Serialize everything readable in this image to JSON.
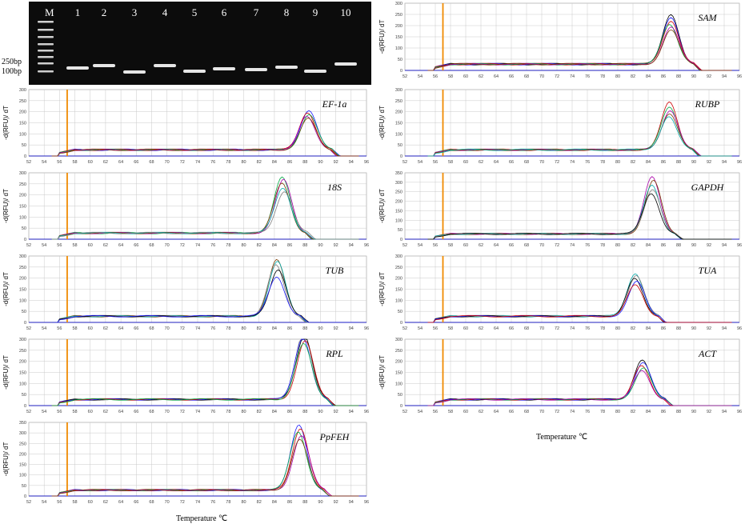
{
  "gel": {
    "marker_label": "M",
    "lane_labels": [
      "1",
      "2",
      "3",
      "4",
      "5",
      "6",
      "7",
      "8",
      "9",
      "10"
    ],
    "size_labels": [
      "250bp",
      "100bp"
    ]
  },
  "colors": {
    "axis_line": "#1f1fbf",
    "threshold": "#f08a00",
    "grid": "#c9c9c9",
    "series": [
      "#000000",
      "#1a1aff",
      "#cc0000",
      "#00aa44",
      "#aa00aa",
      "#7a3a00",
      "#00aaaa",
      "#808080"
    ]
  },
  "x_axis_label": "Temperature ℃",
  "chart_data": [
    {
      "id": "SAM",
      "type": "line",
      "title": "SAM",
      "ylabel": "-d(RFU)/ dT",
      "xlim": [
        52,
        96
      ],
      "ylim": [
        0,
        300
      ],
      "x_ticks": [
        52,
        54,
        56,
        58,
        60,
        62,
        64,
        66,
        68,
        70,
        72,
        74,
        76,
        78,
        80,
        82,
        84,
        86,
        88,
        90,
        92,
        94,
        96
      ],
      "y_ticks": [
        0,
        50,
        100,
        150,
        200,
        250,
        300
      ],
      "threshold_x": 57,
      "peaks": [
        {
          "x": 87,
          "y": 220
        },
        {
          "x": 87,
          "y": 210
        },
        {
          "x": 87,
          "y": 195
        },
        {
          "x": 86.8,
          "y": 180
        },
        {
          "x": 87,
          "y": 165
        },
        {
          "x": 87,
          "y": 150
        }
      ]
    },
    {
      "id": "EF",
      "type": "line",
      "title": "EF-1a",
      "ylabel": "-d(RFU)/ dT",
      "xlim": [
        52,
        96
      ],
      "ylim": [
        0,
        300
      ],
      "x_ticks": [
        52,
        54,
        56,
        58,
        60,
        62,
        64,
        66,
        68,
        70,
        72,
        74,
        76,
        78,
        80,
        82,
        84,
        86,
        88,
        90,
        92,
        94,
        96
      ],
      "y_ticks": [
        0,
        50,
        100,
        150,
        200,
        250,
        300
      ],
      "threshold_x": 57,
      "peaks": [
        {
          "x": 88.5,
          "y": 180
        },
        {
          "x": 88.3,
          "y": 170
        },
        {
          "x": 88.5,
          "y": 160
        },
        {
          "x": 88.2,
          "y": 150
        },
        {
          "x": 88.4,
          "y": 140
        }
      ]
    },
    {
      "id": "RUBP",
      "type": "line",
      "title": "RUBP",
      "ylabel": "-d(RFU)/ dT",
      "xlim": [
        52,
        96
      ],
      "ylim": [
        0,
        300
      ],
      "x_ticks": [
        52,
        54,
        56,
        58,
        60,
        62,
        64,
        66,
        68,
        70,
        72,
        74,
        76,
        78,
        80,
        82,
        84,
        86,
        88,
        90,
        92,
        94,
        96
      ],
      "y_ticks": [
        0,
        50,
        100,
        150,
        200,
        250,
        300
      ],
      "threshold_x": 57,
      "peaks": [
        {
          "x": 86.8,
          "y": 215
        },
        {
          "x": 86.8,
          "y": 195
        },
        {
          "x": 86.9,
          "y": 180
        },
        {
          "x": 86.8,
          "y": 165
        },
        {
          "x": 86.7,
          "y": 150
        }
      ]
    },
    {
      "id": "18S",
      "type": "line",
      "title": "18S",
      "ylabel": "-d(RFU)/ dT",
      "xlim": [
        52,
        96
      ],
      "ylim": [
        0,
        300
      ],
      "x_ticks": [
        52,
        54,
        56,
        58,
        60,
        62,
        64,
        66,
        68,
        70,
        72,
        74,
        76,
        78,
        80,
        82,
        84,
        86,
        88,
        90,
        92,
        94,
        96
      ],
      "y_ticks": [
        0,
        50,
        100,
        150,
        200,
        250,
        300
      ],
      "threshold_x": 57,
      "peaks": [
        {
          "x": 85,
          "y": 250
        },
        {
          "x": 85.2,
          "y": 240
        },
        {
          "x": 85,
          "y": 225
        },
        {
          "x": 85.1,
          "y": 205
        },
        {
          "x": 85.3,
          "y": 190
        }
      ]
    },
    {
      "id": "GAPDH",
      "type": "line",
      "title": "GAPDH",
      "ylabel": "-d(RFU)/ dT",
      "xlim": [
        52,
        96
      ],
      "ylim": [
        0,
        350
      ],
      "x_ticks": [
        52,
        54,
        56,
        58,
        60,
        62,
        64,
        66,
        68,
        70,
        72,
        74,
        76,
        78,
        80,
        82,
        84,
        86,
        88,
        90,
        92,
        94,
        96
      ],
      "y_ticks": [
        0,
        50,
        100,
        150,
        200,
        250,
        300,
        350
      ],
      "threshold_x": 57,
      "peaks": [
        {
          "x": 84.5,
          "y": 300
        },
        {
          "x": 84.7,
          "y": 280
        },
        {
          "x": 84.5,
          "y": 255
        },
        {
          "x": 84.6,
          "y": 235
        },
        {
          "x": 84.4,
          "y": 215
        }
      ]
    },
    {
      "id": "TUB",
      "type": "line",
      "title": "TUB",
      "ylabel": "-d(RFU)/ dT",
      "xlim": [
        52,
        96
      ],
      "ylim": [
        0,
        300
      ],
      "x_ticks": [
        52,
        54,
        56,
        58,
        60,
        62,
        64,
        66,
        68,
        70,
        72,
        74,
        76,
        78,
        80,
        82,
        84,
        86,
        88,
        90,
        92,
        94,
        96
      ],
      "y_ticks": [
        0,
        50,
        100,
        150,
        200,
        250,
        300
      ],
      "threshold_x": 57,
      "peaks": [
        {
          "x": 84.3,
          "y": 255
        },
        {
          "x": 84.4,
          "y": 245
        },
        {
          "x": 84.2,
          "y": 230
        },
        {
          "x": 84.5,
          "y": 210
        },
        {
          "x": 84.3,
          "y": 180
        }
      ]
    },
    {
      "id": "TUA",
      "type": "line",
      "title": "TUA",
      "ylabel": "-d(RFU)/ dT",
      "xlim": [
        52,
        96
      ],
      "ylim": [
        0,
        300
      ],
      "x_ticks": [
        52,
        54,
        56,
        58,
        60,
        62,
        64,
        66,
        68,
        70,
        72,
        74,
        76,
        78,
        80,
        82,
        84,
        86,
        88,
        90,
        92,
        94,
        96
      ],
      "y_ticks": [
        0,
        50,
        100,
        150,
        200,
        250,
        300
      ],
      "threshold_x": 57,
      "peaks": [
        {
          "x": 82.3,
          "y": 195
        },
        {
          "x": 82.4,
          "y": 185
        },
        {
          "x": 82.2,
          "y": 170
        },
        {
          "x": 82.5,
          "y": 155
        },
        {
          "x": 82.3,
          "y": 140
        }
      ]
    },
    {
      "id": "RPL",
      "type": "line",
      "title": "RPL",
      "ylabel": "-d(RFU)/ dT",
      "xlim": [
        52,
        96
      ],
      "ylim": [
        0,
        300
      ],
      "x_ticks": [
        52,
        54,
        56,
        58,
        60,
        62,
        64,
        66,
        68,
        70,
        72,
        74,
        76,
        78,
        80,
        82,
        84,
        86,
        88,
        90,
        92,
        94,
        96
      ],
      "y_ticks": [
        0,
        50,
        100,
        150,
        200,
        250,
        300
      ],
      "threshold_x": 57,
      "peaks": [
        {
          "x": 87.8,
          "y": 300
        },
        {
          "x": 87.9,
          "y": 290
        },
        {
          "x": 87.7,
          "y": 280
        },
        {
          "x": 88,
          "y": 265
        },
        {
          "x": 87.8,
          "y": 250
        }
      ]
    },
    {
      "id": "ACT",
      "type": "line",
      "title": "ACT",
      "ylabel": "-d(RFU)/ dT",
      "xlim": [
        52,
        96
      ],
      "ylim": [
        0,
        300
      ],
      "x_ticks": [
        52,
        54,
        56,
        58,
        60,
        62,
        64,
        66,
        68,
        70,
        72,
        74,
        76,
        78,
        80,
        82,
        84,
        86,
        88,
        90,
        92,
        94,
        96
      ],
      "y_ticks": [
        0,
        50,
        100,
        150,
        200,
        250,
        300
      ],
      "threshold_x": 57,
      "peaks": [
        {
          "x": 83.2,
          "y": 180
        },
        {
          "x": 83.3,
          "y": 165
        },
        {
          "x": 83.1,
          "y": 150
        },
        {
          "x": 83.4,
          "y": 140
        },
        {
          "x": 83.2,
          "y": 130
        }
      ]
    },
    {
      "id": "PpFEH",
      "type": "line",
      "title": "PpFEH",
      "ylabel": "-d(RFU)/ dT",
      "xlim": [
        52,
        96
      ],
      "ylim": [
        0,
        350
      ],
      "x_ticks": [
        52,
        54,
        56,
        58,
        60,
        62,
        64,
        66,
        68,
        70,
        72,
        74,
        76,
        78,
        80,
        82,
        84,
        86,
        88,
        90,
        92,
        94,
        96
      ],
      "y_ticks": [
        0,
        50,
        100,
        150,
        200,
        250,
        300,
        350
      ],
      "threshold_x": 57,
      "peaks": [
        {
          "x": 87.2,
          "y": 310
        },
        {
          "x": 87.4,
          "y": 295
        },
        {
          "x": 87.1,
          "y": 280
        },
        {
          "x": 87.5,
          "y": 260
        },
        {
          "x": 87.3,
          "y": 240
        }
      ]
    }
  ]
}
